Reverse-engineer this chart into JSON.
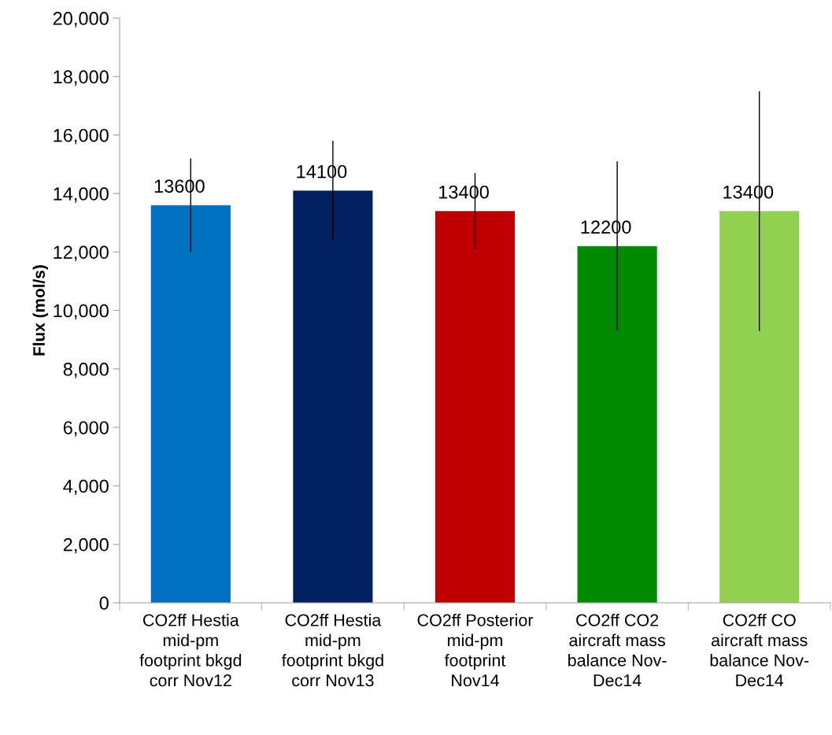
{
  "chart_data": {
    "type": "bar",
    "ylabel": "Flux (mol/s)",
    "categories": [
      "CO2ff Hestia\nmid-pm\nfootprint bkgd\ncorr Nov12",
      "CO2ff Hestia\nmid-pm\nfootprint bkgd\ncorr Nov13",
      "CO2ff Posterior\nmid-pm\nfootprint\nNov14",
      "CO2ff CO2\naircraft mass\nbalance Nov-\nDec14",
      "CO2ff CO\naircraft mass\nbalance Nov-\nDec14"
    ],
    "values": [
      13600,
      14100,
      13400,
      12200,
      13400
    ],
    "colors": [
      "#0070c0",
      "#002060",
      "#c00000",
      "#008a00",
      "#92d050"
    ],
    "errors": [
      [
        12000,
        15200
      ],
      [
        12400,
        15800
      ],
      [
        12100,
        14700
      ],
      [
        9300,
        15100
      ],
      [
        9300,
        17500
      ]
    ],
    "data_labels": true,
    "ylim": [
      0,
      20000
    ],
    "yticks": [
      {
        "value": 0,
        "label": "0"
      },
      {
        "value": 2000,
        "label": "2,000"
      },
      {
        "value": 4000,
        "label": "4,000"
      },
      {
        "value": 6000,
        "label": "6,000"
      },
      {
        "value": 8000,
        "label": "8,000"
      },
      {
        "value": 10000,
        "label": "10,000"
      },
      {
        "value": 12000,
        "label": "12,000"
      },
      {
        "value": 14000,
        "label": "14,000"
      },
      {
        "value": 16000,
        "label": "16,000"
      },
      {
        "value": 18000,
        "label": "18,000"
      },
      {
        "value": 20000,
        "label": "20,000"
      }
    ],
    "grid": false,
    "legend": false
  }
}
